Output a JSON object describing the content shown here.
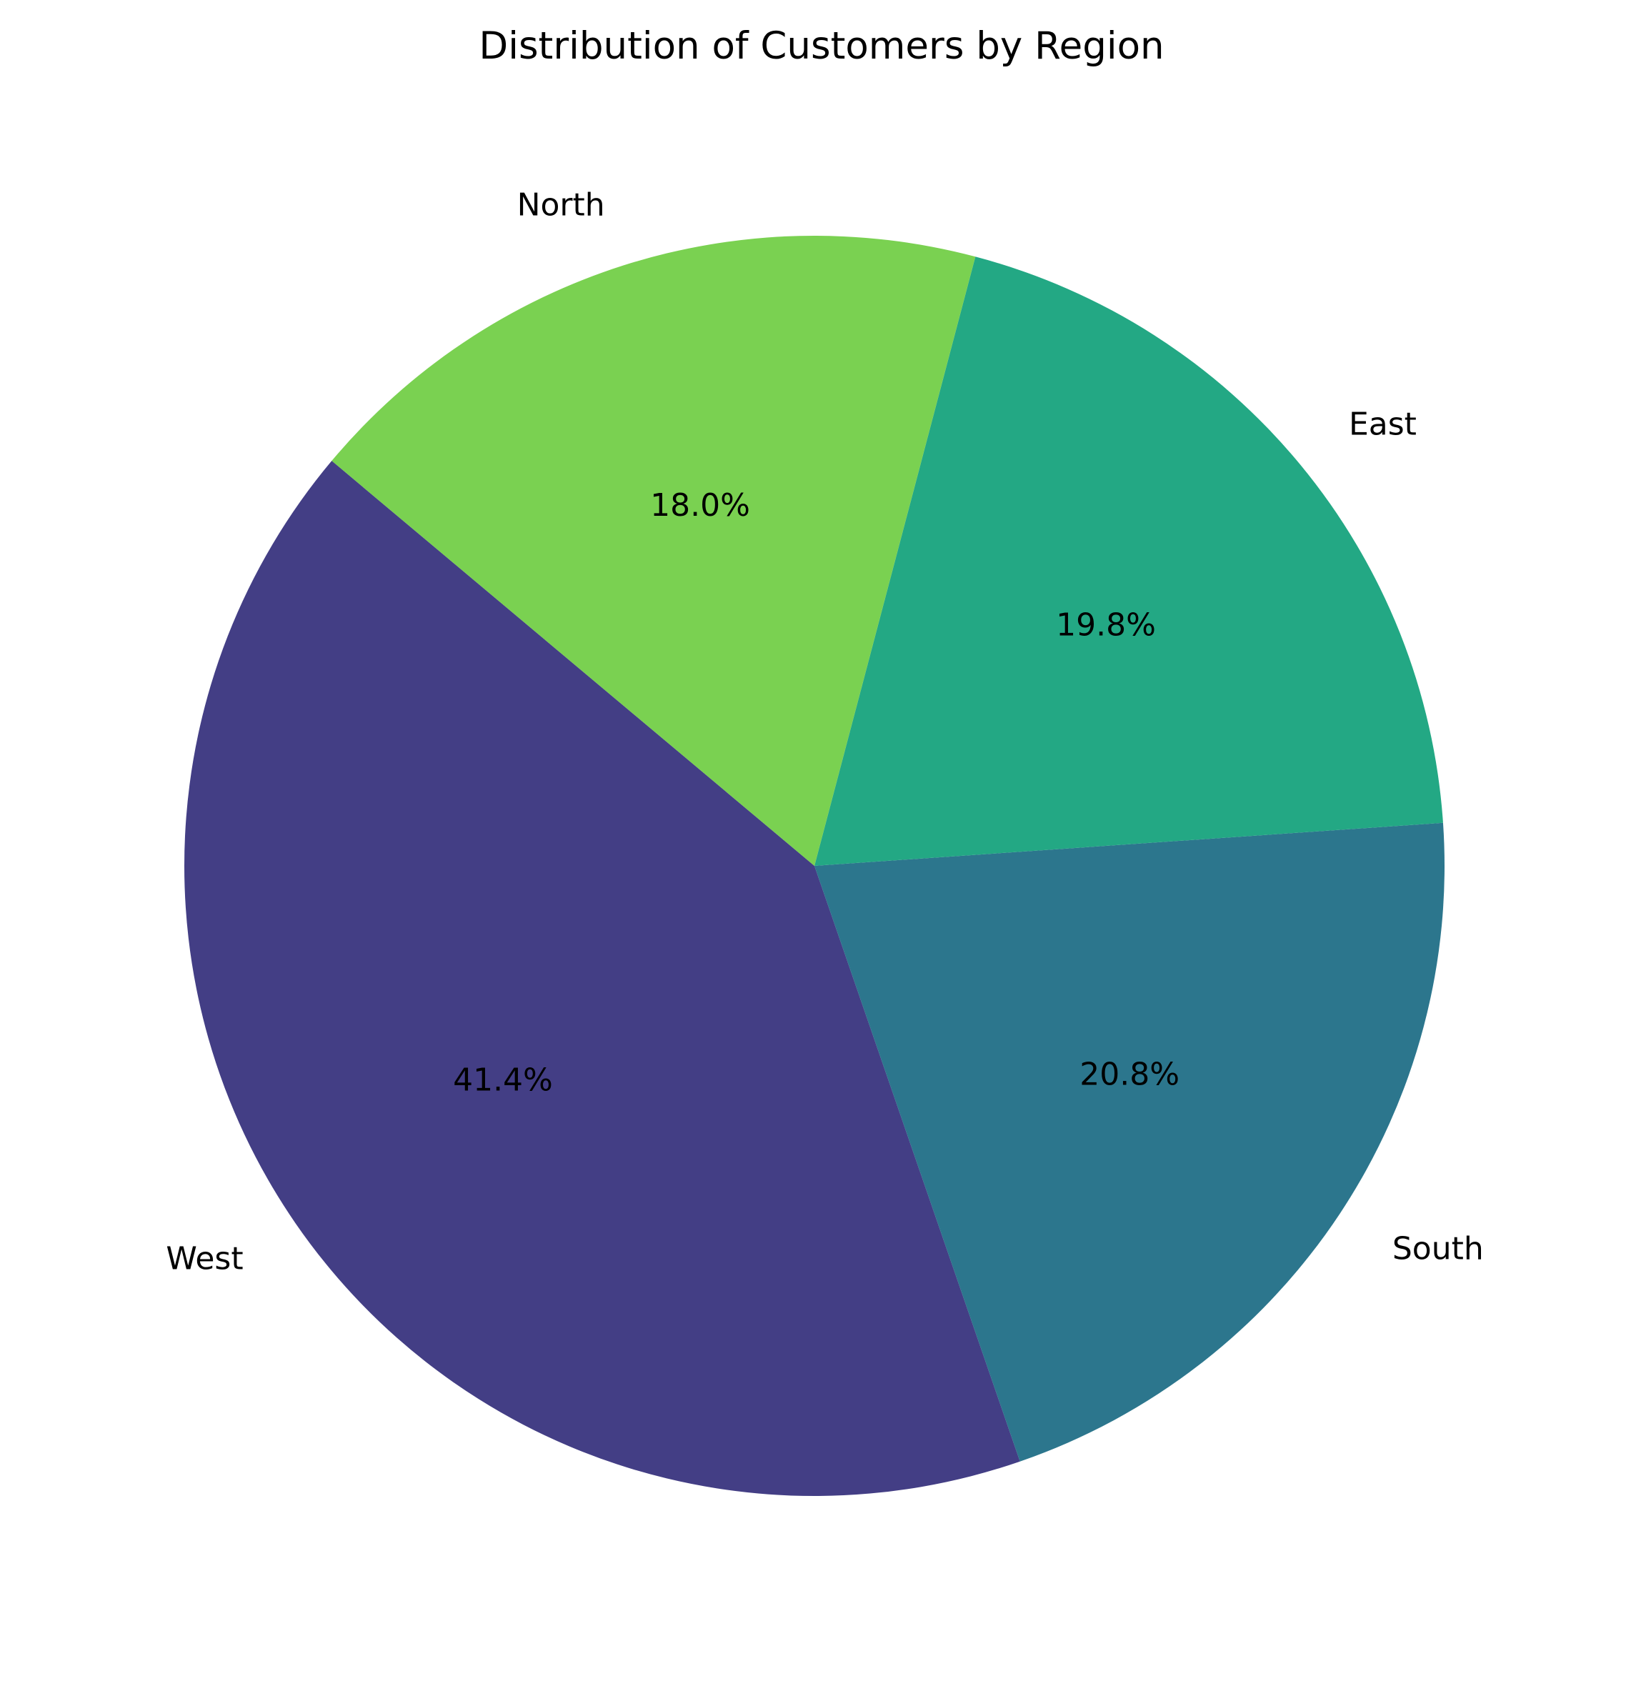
{
  "chart_data": {
    "type": "pie",
    "title": "Distribution of Customers by Region",
    "categories": [
      "West",
      "South",
      "East",
      "North"
    ],
    "values": [
      41.4,
      20.8,
      19.8,
      18.0
    ],
    "percent_labels": [
      "41.4%",
      "20.8%",
      "19.8%",
      "18.0%"
    ],
    "colors": [
      "#433e85",
      "#2c768d",
      "#23a884",
      "#7ad151"
    ],
    "start_angle_deg": 140,
    "direction": "counterclockwise",
    "legend": "none"
  }
}
